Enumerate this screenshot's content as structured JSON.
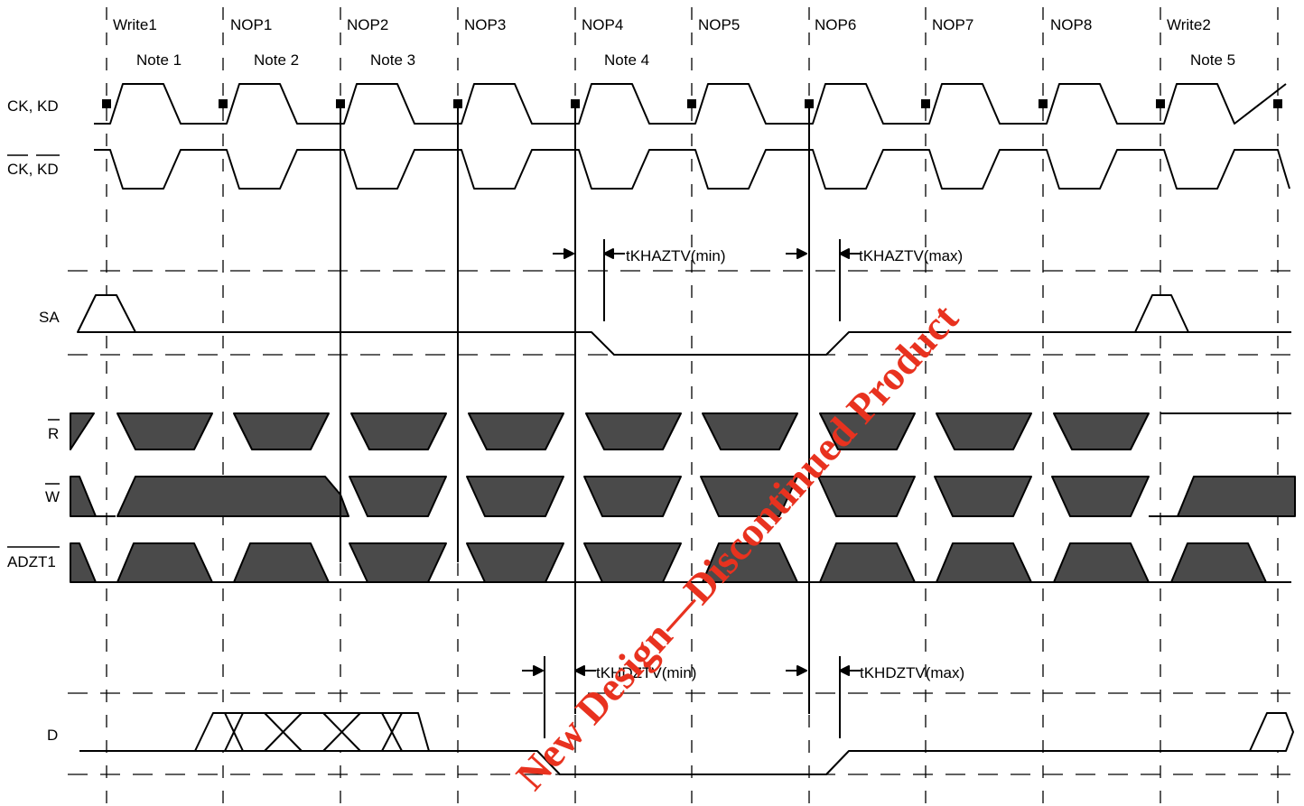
{
  "cycles": [
    "Write1",
    "NOP1",
    "NOP2",
    "NOP3",
    "NOP4",
    "NOP5",
    "NOP6",
    "NOP7",
    "NOP8",
    "Write2"
  ],
  "notes": [
    "Note 1",
    "Note 2",
    "Note 3",
    "Note 4",
    "Note 5"
  ],
  "signals": {
    "ck_kd": "CK, KD",
    "ck_kd_bar": "CK, KD",
    "sa": "SA",
    "r_bar": "R",
    "w_bar": "W",
    "adzt1_bar": "ADZT1",
    "d": "D"
  },
  "timing": {
    "khaztv_min": "tKHAZTV(min)",
    "khaztv_max": "tKHAZTV(max)",
    "khdztv_min": "tKHDZTV(min)",
    "khdztv_max": "tKHDZTV(max)"
  },
  "watermark": "New Design—Discontinued Product",
  "colors": {
    "fill": "#4a4a4a",
    "watermark": "#e8321f",
    "line": "#000000"
  }
}
